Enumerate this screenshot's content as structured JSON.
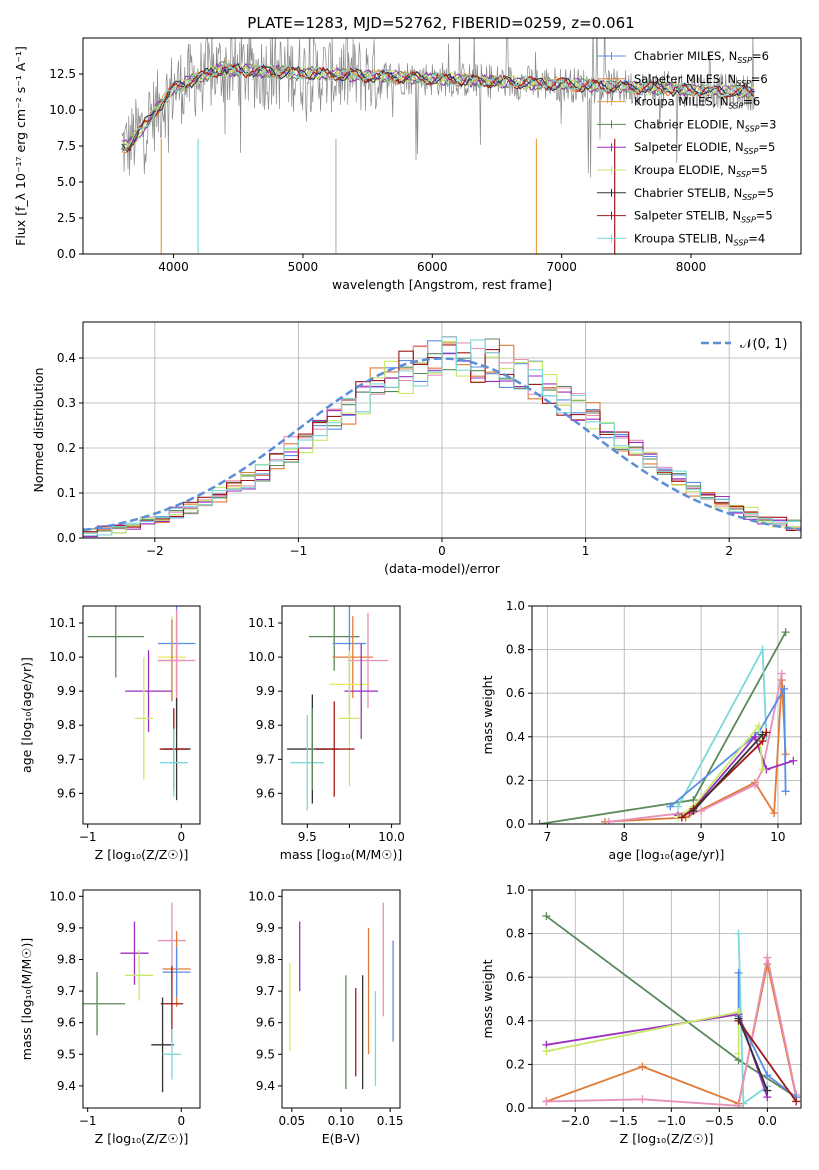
{
  "figure": {
    "title": "PLATE=1283, MJD=52762, FIBERID=0259, z=0.061"
  },
  "colors": [
    "#5b8ee6",
    "#e07b39",
    "#e8e85c",
    "#5a8a5a",
    "#9b30c0",
    "#c8e86a",
    "#333333",
    "#a01818",
    "#7dd8d8",
    "#8a8a8a",
    "#e890b8"
  ],
  "chart_data": [
    {
      "id": "spectrum",
      "type": "line",
      "xlabel": "wavelength [Angstrom, rest frame]",
      "ylabel": "Flux [f_λ 10⁻¹⁷ erg cm⁻² s⁻¹ A⁻¹]",
      "xlim": [
        3300,
        8850
      ],
      "ylim": [
        0,
        15
      ],
      "xticks": [
        4000,
        5000,
        6000,
        7000,
        8000
      ],
      "yticks": [
        0.0,
        2.5,
        5.0,
        7.5,
        10.0,
        12.5
      ],
      "grid": false,
      "legend_placement": "right",
      "observed_range": [
        3600,
        8500
      ],
      "series": [
        {
          "name": "Chabrier MILES, N_SSP=6",
          "color": "#5b8ee6"
        },
        {
          "name": "Salpeter MILES, N_SSP=6",
          "color": "#e07b39"
        },
        {
          "name": "Kroupa MILES, N_SSP=6",
          "color": "#e8a13a"
        },
        {
          "name": "Chabrier ELODIE, N_SSP=3",
          "color": "#5a8a5a"
        },
        {
          "name": "Salpeter ELODIE, N_SSP=5",
          "color": "#9b30c0"
        },
        {
          "name": "Kroupa ELODIE, N_SSP=5",
          "color": "#c8e86a"
        },
        {
          "name": "Chabrier STELIB, N_SSP=5",
          "color": "#333333"
        },
        {
          "name": "Salpeter STELIB, N_SSP=5",
          "color": "#a01818"
        },
        {
          "name": "Kroupa STELIB, N_SSP=4",
          "color": "#7dd8d8"
        }
      ]
    },
    {
      "id": "residuals",
      "type": "line",
      "xlabel": "(data-model)/error",
      "ylabel": "Normed distribution",
      "xlim": [
        -2.5,
        2.5
      ],
      "ylim": [
        0,
        0.48
      ],
      "xticks": [
        -2,
        -1,
        0,
        1,
        2
      ],
      "yticks": [
        0.0,
        0.1,
        0.2,
        0.3,
        0.4
      ],
      "grid": true,
      "legend": "𝒩(0, 1)",
      "legend_placement": "top-right",
      "bin_width": 0.1,
      "series": [
        {
          "color": "#5b8ee6"
        },
        {
          "color": "#e07b39"
        },
        {
          "color": "#e890b8"
        },
        {
          "color": "#5a8a5a"
        },
        {
          "color": "#9b30c0"
        },
        {
          "color": "#c8e86a"
        },
        {
          "color": "#a01818"
        },
        {
          "color": "#7dd8d8"
        }
      ]
    },
    {
      "id": "age-vs-Z",
      "type": "scatter",
      "xlabel": "Z [log₁₀(Z/Z☉)]",
      "ylabel": "age  [log₁₀(age/yr)]",
      "xlim": [
        -1.05,
        0.2
      ],
      "ylim": [
        9.51,
        10.15
      ],
      "xticks": [
        -1,
        0
      ],
      "yticks": [
        9.6,
        9.7,
        9.8,
        9.9,
        10.0,
        10.1
      ],
      "points": [
        {
          "x": -0.7,
          "y": 10.06,
          "xerr": 0.3,
          "yerr": 0.12,
          "color": "#5a8a5a"
        },
        {
          "x": -0.05,
          "y": 10.04,
          "xerr": 0.2,
          "yerr": 0.25,
          "color": "#5b8ee6"
        },
        {
          "x": -0.1,
          "y": 10.0,
          "xerr": 0.15,
          "yerr": 0.12,
          "color": "#e8e85c"
        },
        {
          "x": -0.1,
          "y": 9.99,
          "xerr": 0.15,
          "yerr": 0.12,
          "color": "#e07b39"
        },
        {
          "x": -0.05,
          "y": 9.99,
          "xerr": 0.2,
          "yerr": 0.15,
          "color": "#e890b8"
        },
        {
          "x": -0.35,
          "y": 9.9,
          "xerr": 0.25,
          "yerr": 0.12,
          "color": "#9b30c0"
        },
        {
          "x": -0.4,
          "y": 9.82,
          "xerr": 0.1,
          "yerr": 0.18,
          "color": "#c8e86a"
        },
        {
          "x": -0.05,
          "y": 9.73,
          "xerr": 0.15,
          "yerr": 0.15,
          "color": "#333333"
        },
        {
          "x": -0.08,
          "y": 9.73,
          "xerr": 0.15,
          "yerr": 0.12,
          "color": "#a01818"
        },
        {
          "x": -0.08,
          "y": 9.69,
          "xerr": 0.15,
          "yerr": 0.1,
          "color": "#7dd8d8"
        }
      ]
    },
    {
      "id": "age-vs-mass",
      "type": "scatter",
      "xlabel": "mass [log₁₀(M/M☉)]",
      "ylabel": "",
      "xlim": [
        9.35,
        10.05
      ],
      "ylim": [
        9.51,
        10.15
      ],
      "xticks": [
        9.5,
        9.75,
        10.0
      ],
      "xticklabels": [
        "9.5",
        "",
        "10.0"
      ],
      "yticks": [
        9.6,
        9.7,
        9.8,
        9.9,
        10.0,
        10.1
      ],
      "points": [
        {
          "x": 9.66,
          "y": 10.06,
          "xerr": 0.15,
          "yerr": 0.1,
          "color": "#5a8a5a"
        },
        {
          "x": 9.75,
          "y": 10.04,
          "xerr": 0.1,
          "yerr": 0.2,
          "color": "#5b8ee6"
        },
        {
          "x": 9.77,
          "y": 10.0,
          "xerr": 0.12,
          "yerr": 0.12,
          "color": "#e07b39"
        },
        {
          "x": 9.86,
          "y": 9.99,
          "xerr": 0.12,
          "yerr": 0.14,
          "color": "#e890b8"
        },
        {
          "x": 9.75,
          "y": 9.92,
          "xerr": 0.12,
          "yerr": 0.1,
          "color": "#e8e85c"
        },
        {
          "x": 9.82,
          "y": 9.9,
          "xerr": 0.1,
          "yerr": 0.14,
          "color": "#9b30c0"
        },
        {
          "x": 9.75,
          "y": 9.82,
          "xerr": 0.06,
          "yerr": 0.2,
          "color": "#c8e86a"
        },
        {
          "x": 9.53,
          "y": 9.73,
          "xerr": 0.15,
          "yerr": 0.16,
          "color": "#333333"
        },
        {
          "x": 9.66,
          "y": 9.73,
          "xerr": 0.12,
          "yerr": 0.14,
          "color": "#a01818"
        },
        {
          "x": 9.5,
          "y": 9.69,
          "xerr": 0.1,
          "yerr": 0.14,
          "color": "#7dd8d8"
        },
        {
          "x": 9.53,
          "y": 9.73,
          "xerr": 0.02,
          "yerr": 0.12,
          "color": "#5a8a5a"
        }
      ]
    },
    {
      "id": "mass-weight-vs-age",
      "type": "line",
      "xlabel": "age  [log₁₀(age/yr)]",
      "ylabel": "mass weight",
      "xlim": [
        6.8,
        10.3
      ],
      "ylim": [
        0,
        1.0
      ],
      "xticks": [
        7,
        8,
        9,
        10
      ],
      "yticks": [
        0.0,
        0.2,
        0.4,
        0.6,
        0.8,
        1.0
      ],
      "grid": true,
      "series": [
        {
          "color": "#5a8a5a",
          "points": [
            [
              6.9,
              0.0
            ],
            [
              8.9,
              0.11
            ],
            [
              10.1,
              0.88
            ]
          ]
        },
        {
          "color": "#7dd8d8",
          "points": [
            [
              8.7,
              0.08
            ],
            [
              9.8,
              0.8
            ],
            [
              9.85,
              0.4
            ]
          ]
        },
        {
          "color": "#e07b39",
          "points": [
            [
              7.75,
              0.01
            ],
            [
              8.8,
              0.03
            ],
            [
              9.7,
              0.19
            ],
            [
              9.95,
              0.05
            ],
            [
              10.05,
              0.66
            ],
            [
              10.1,
              0.32
            ]
          ]
        },
        {
          "color": "#e890b8",
          "points": [
            [
              7.8,
              0.01
            ],
            [
              9.0,
              0.06
            ],
            [
              9.7,
              0.18
            ],
            [
              9.8,
              0.25
            ],
            [
              10.05,
              0.69
            ]
          ]
        },
        {
          "color": "#5b8ee6",
          "points": [
            [
              8.6,
              0.08
            ],
            [
              9.75,
              0.42
            ],
            [
              10.08,
              0.62
            ],
            [
              10.1,
              0.15
            ]
          ]
        },
        {
          "color": "#9b30c0",
          "points": [
            [
              8.7,
              0.04
            ],
            [
              8.85,
              0.05
            ],
            [
              9.7,
              0.4
            ],
            [
              9.85,
              0.25
            ],
            [
              10.2,
              0.29
            ]
          ]
        },
        {
          "color": "#c8e86a",
          "points": [
            [
              8.7,
              0.03
            ],
            [
              8.9,
              0.08
            ],
            [
              9.75,
              0.45
            ],
            [
              9.8,
              0.25
            ]
          ]
        },
        {
          "color": "#a01818",
          "points": [
            [
              8.75,
              0.03
            ],
            [
              8.9,
              0.07
            ],
            [
              9.8,
              0.38
            ],
            [
              9.85,
              0.42
            ]
          ]
        },
        {
          "color": "#333333",
          "points": [
            [
              8.9,
              0.06
            ],
            [
              9.8,
              0.41
            ]
          ]
        }
      ]
    },
    {
      "id": "mass-vs-Z",
      "type": "scatter",
      "xlabel": "Z [log₁₀(Z/Z☉)]",
      "ylabel": "mass [log₁₀(M/M☉)]",
      "xlim": [
        -1.05,
        0.2
      ],
      "ylim": [
        9.33,
        10.02
      ],
      "xticks": [
        -1,
        0
      ],
      "yticks": [
        9.4,
        9.5,
        9.6,
        9.7,
        9.8,
        9.9,
        10.0
      ],
      "points": [
        {
          "x": -0.9,
          "y": 9.66,
          "xerr": 0.3,
          "yerr": 0.1,
          "color": "#5a8a5a"
        },
        {
          "x": -0.5,
          "y": 9.82,
          "xerr": 0.15,
          "yerr": 0.1,
          "color": "#9b30c0"
        },
        {
          "x": -0.45,
          "y": 9.75,
          "xerr": 0.15,
          "yerr": 0.08,
          "color": "#c8e86a"
        },
        {
          "x": -0.1,
          "y": 9.86,
          "xerr": 0.15,
          "yerr": 0.12,
          "color": "#e890b8"
        },
        {
          "x": -0.05,
          "y": 9.77,
          "xerr": 0.15,
          "yerr": 0.12,
          "color": "#e07b39"
        },
        {
          "x": -0.05,
          "y": 9.76,
          "xerr": 0.15,
          "yerr": 0.08,
          "color": "#5b8ee6"
        },
        {
          "x": -0.1,
          "y": 9.66,
          "xerr": 0.12,
          "yerr": 0.12,
          "color": "#a01818"
        },
        {
          "x": -0.2,
          "y": 9.53,
          "xerr": 0.12,
          "yerr": 0.15,
          "color": "#333333"
        },
        {
          "x": -0.1,
          "y": 9.5,
          "xerr": 0.1,
          "yerr": 0.08,
          "color": "#7dd8d8"
        }
      ]
    },
    {
      "id": "mass-vs-ebv",
      "type": "scatter",
      "xlabel": "E(B-V)",
      "ylabel": "",
      "xlim": [
        0.04,
        0.16
      ],
      "ylim": [
        9.33,
        10.02
      ],
      "xticks": [
        0.05,
        0.1,
        0.15
      ],
      "yticks": [
        9.4,
        9.5,
        9.6,
        9.7,
        9.8,
        9.9,
        10.0
      ],
      "points": [
        {
          "x": 0.048,
          "y": 9.65,
          "xerr": 0,
          "yerr": 0.14,
          "color": "#e8e85c"
        },
        {
          "x": 0.058,
          "y": 9.81,
          "xerr": 0,
          "yerr": 0.11,
          "color": "#9b30c0"
        },
        {
          "x": 0.105,
          "y": 9.57,
          "xerr": 0,
          "yerr": 0.18,
          "color": "#5a8a5a"
        },
        {
          "x": 0.115,
          "y": 9.57,
          "xerr": 0,
          "yerr": 0.14,
          "color": "#a01818"
        },
        {
          "x": 0.122,
          "y": 9.57,
          "xerr": 0,
          "yerr": 0.18,
          "color": "#333333"
        },
        {
          "x": 0.128,
          "y": 9.7,
          "xerr": 0,
          "yerr": 0.2,
          "color": "#e07b39"
        },
        {
          "x": 0.135,
          "y": 9.55,
          "xerr": 0,
          "yerr": 0.15,
          "color": "#7dd8d8"
        },
        {
          "x": 0.143,
          "y": 9.8,
          "xerr": 0,
          "yerr": 0.18,
          "color": "#e890b8"
        },
        {
          "x": 0.153,
          "y": 9.7,
          "xerr": 0,
          "yerr": 0.16,
          "color": "#5b8ee6"
        }
      ]
    },
    {
      "id": "mass-weight-vs-Z",
      "type": "line",
      "xlabel": "Z [log₁₀(Z/Z☉)]",
      "ylabel": "mass weight",
      "xlim": [
        -2.45,
        0.35
      ],
      "ylim": [
        0,
        1.0
      ],
      "xticks": [
        -2.0,
        -1.5,
        -1.0,
        -0.5,
        0.0
      ],
      "xticklabels": [
        "−2.0",
        "−1.5",
        "−1.0",
        "−0.5",
        "0.0"
      ],
      "yticks": [
        0.0,
        0.2,
        0.4,
        0.6,
        0.8,
        1.0
      ],
      "grid": true,
      "series": [
        {
          "color": "#5a8a5a",
          "points": [
            [
              -2.3,
              0.88
            ],
            [
              -0.3,
              0.22
            ],
            [
              0.3,
              0.05
            ]
          ]
        },
        {
          "color": "#7dd8d8",
          "points": [
            [
              -0.3,
              0.8
            ],
            [
              -0.25,
              0.02
            ],
            [
              0.0,
              0.1
            ]
          ]
        },
        {
          "color": "#e07b39",
          "points": [
            [
              -2.3,
              0.03
            ],
            [
              -1.3,
              0.19
            ],
            [
              -0.3,
              0.02
            ],
            [
              0.0,
              0.66
            ],
            [
              0.3,
              0.05
            ]
          ]
        },
        {
          "color": "#e890b8",
          "points": [
            [
              -2.3,
              0.03
            ],
            [
              -1.3,
              0.04
            ],
            [
              -0.3,
              0.01
            ],
            [
              0.0,
              0.69
            ],
            [
              0.3,
              0.06
            ]
          ]
        },
        {
          "color": "#5b8ee6",
          "points": [
            [
              -0.3,
              0.62
            ],
            [
              -0.3,
              0.42
            ],
            [
              0.0,
              0.15
            ],
            [
              0.3,
              0.05
            ]
          ]
        },
        {
          "color": "#9b30c0",
          "points": [
            [
              -2.3,
              0.29
            ],
            [
              -0.3,
              0.43
            ],
            [
              0.0,
              0.05
            ]
          ]
        },
        {
          "color": "#c8e86a",
          "points": [
            [
              -2.3,
              0.26
            ],
            [
              -0.3,
              0.44
            ],
            [
              -0.3,
              0.25
            ]
          ]
        },
        {
          "color": "#a01818",
          "points": [
            [
              -0.3,
              0.4
            ],
            [
              0.3,
              0.03
            ]
          ]
        },
        {
          "color": "#333333",
          "points": [
            [
              -0.3,
              0.41
            ],
            [
              0.0,
              0.08
            ]
          ]
        }
      ]
    }
  ]
}
